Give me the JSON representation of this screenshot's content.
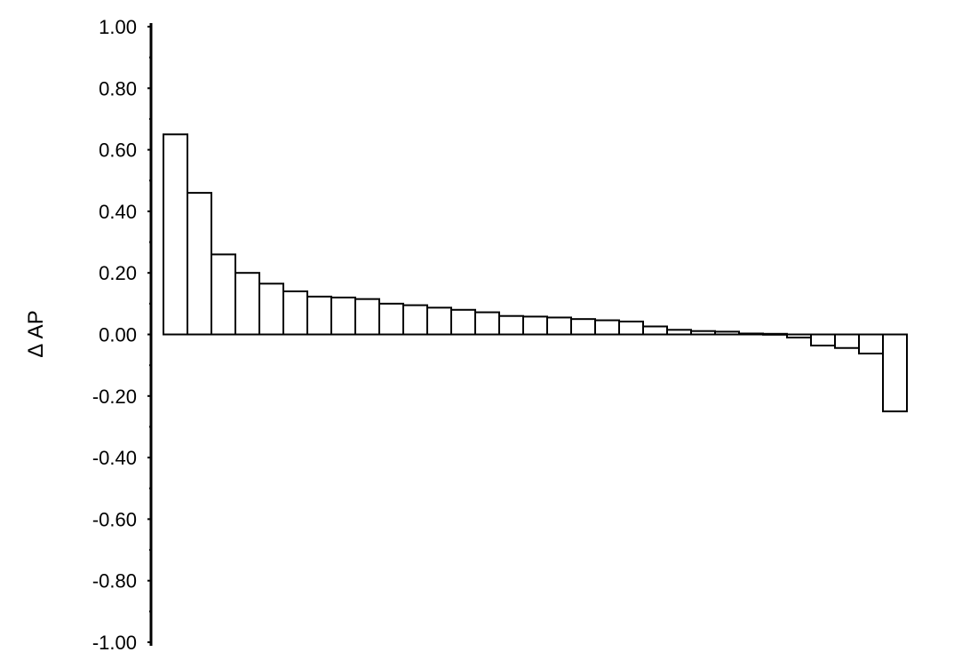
{
  "chart_data": {
    "type": "bar",
    "ylabel": "Δ AP",
    "ylim": [
      -1.0,
      1.0
    ],
    "yticks": [
      "1.00",
      "0.80",
      "0.60",
      "0.40",
      "0.20",
      "0.00",
      "-0.20",
      "-0.40",
      "-0.60",
      "-0.80",
      "-1.00"
    ],
    "ytick_values": [
      1.0,
      0.8,
      0.6,
      0.4,
      0.2,
      0.0,
      -0.2,
      -0.4,
      -0.6,
      -0.8,
      -1.0
    ],
    "grid": false,
    "values": [
      0.65,
      0.46,
      0.26,
      0.2,
      0.165,
      0.14,
      0.123,
      0.12,
      0.115,
      0.1,
      0.095,
      0.087,
      0.08,
      0.072,
      0.06,
      0.058,
      0.055,
      0.05,
      0.046,
      0.042,
      0.026,
      0.015,
      0.011,
      0.009,
      0.003,
      0.002,
      -0.01,
      -0.036,
      -0.044,
      -0.062,
      -0.25
    ],
    "colors": {
      "bar_fill": "#ffffff",
      "bar_stroke": "#000000",
      "axis": "#000000"
    }
  }
}
